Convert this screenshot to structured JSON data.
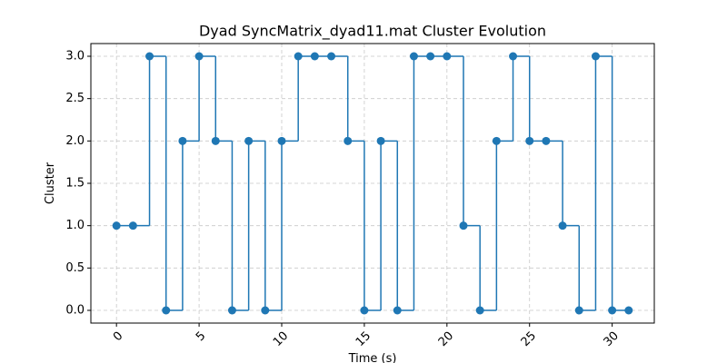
{
  "chart_data": {
    "type": "line",
    "step": "post",
    "title": "Dyad SyncMatrix_dyad11.mat Cluster Evolution",
    "x_label": "Time (s)",
    "y_label": "Cluster",
    "x": [
      0,
      1,
      2,
      3,
      4,
      5,
      6,
      7,
      8,
      9,
      10,
      11,
      12,
      13,
      14,
      15,
      16,
      17,
      18,
      19,
      20,
      21,
      22,
      23,
      24,
      25,
      26,
      27,
      28,
      29,
      30,
      31
    ],
    "series": [
      {
        "color": "#1f77b4",
        "values": [
          1,
          1,
          3,
          0,
          2,
          3,
          2,
          0,
          2,
          0,
          2,
          3,
          3,
          3,
          2,
          0,
          2,
          0,
          3,
          3,
          3,
          1,
          0,
          2,
          3,
          2,
          2,
          1,
          0,
          3,
          0,
          0
        ]
      }
    ],
    "xlim": [
      -1.55,
      32.55
    ],
    "xticks": [
      0,
      5,
      10,
      15,
      20,
      25,
      30
    ],
    "ylim": [
      -0.15,
      3.15
    ],
    "yticks": [
      {
        "value": 0,
        "label": "0.0"
      },
      {
        "value": 0.5,
        "label": "0.5"
      },
      {
        "value": 1,
        "label": "1.0"
      },
      {
        "value": 1.5,
        "label": "1.5"
      },
      {
        "value": 2,
        "label": "2.0"
      },
      {
        "value": 2.5,
        "label": "2.5"
      },
      {
        "value": 3,
        "label": "3.0"
      }
    ],
    "grid": true
  }
}
